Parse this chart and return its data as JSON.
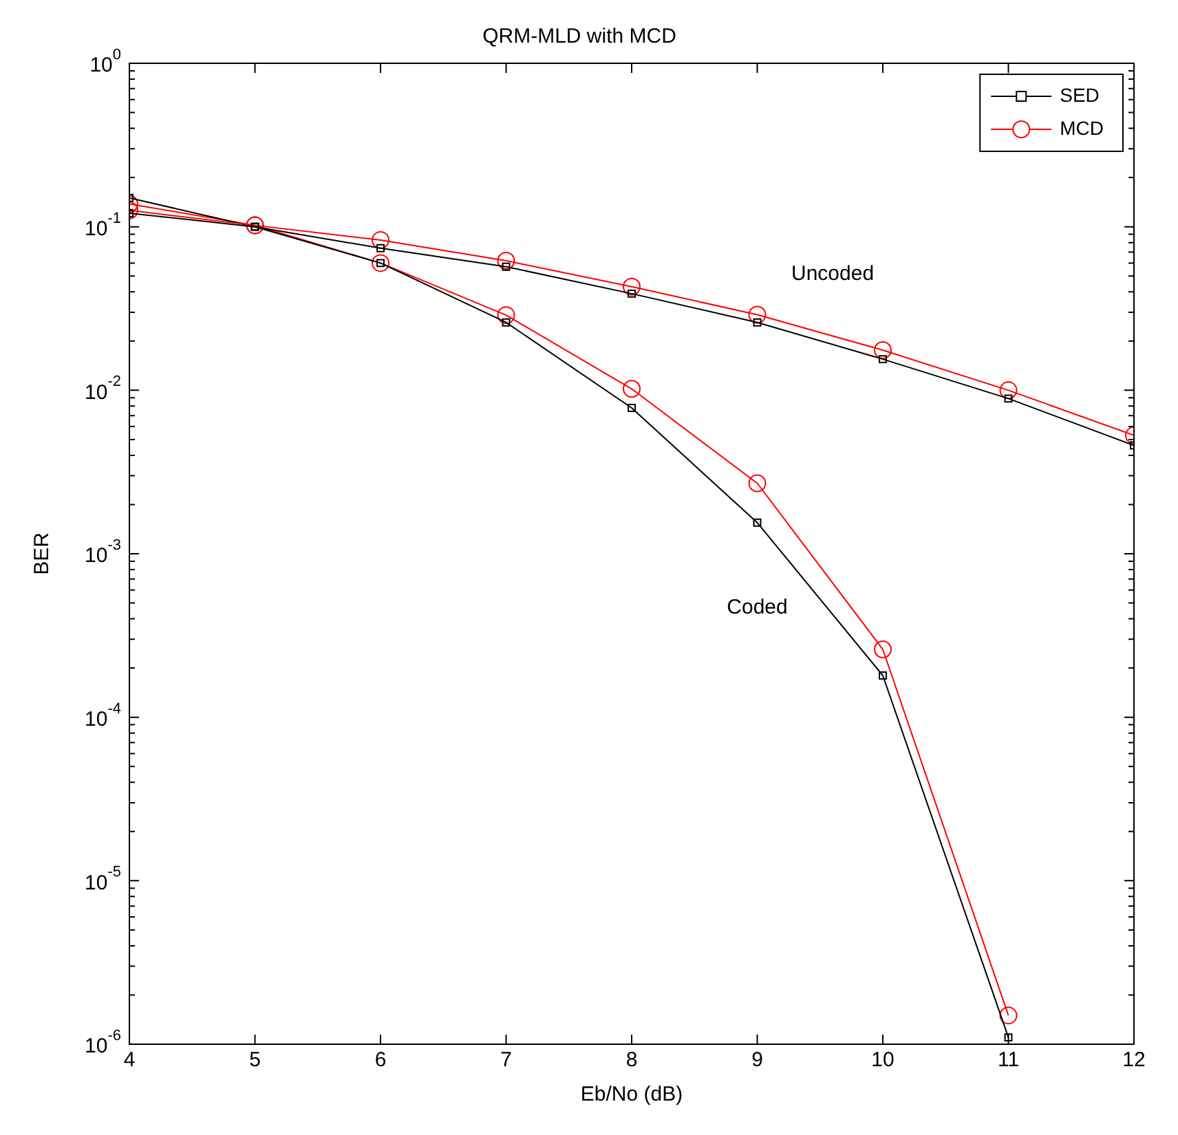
{
  "chart_data": {
    "type": "line",
    "title": "QRM-MLD with MCD",
    "xlabel": "Eb/No (dB)",
    "ylabel": "BER",
    "x": [
      4,
      5,
      6,
      7,
      8,
      9,
      10,
      11,
      12
    ],
    "xlim": [
      4,
      12
    ],
    "xticks": [
      4,
      5,
      6,
      7,
      8,
      9,
      10,
      11,
      12
    ],
    "ylim": [
      1e-06,
      1
    ],
    "yticks": [
      {
        "value": 1e-06,
        "label": "10$^{-6}$"
      },
      {
        "value": 1e-05,
        "label": "10$^{-5}$"
      },
      {
        "value": 0.0001,
        "label": "10$^{-4}$"
      },
      {
        "value": 0.001,
        "label": "10$^{-3}$"
      },
      {
        "value": 0.01,
        "label": "10$^{-2}$"
      },
      {
        "value": 0.1,
        "label": "10$^{-1}$"
      },
      {
        "value": 1,
        "label": "10$^{0}$"
      }
    ],
    "log": "y",
    "grid": false,
    "legend": "top right",
    "line_style": "solid",
    "series": [
      {
        "name": "SED",
        "color": "#000000",
        "marker": "square",
        "values": [
          0.121,
          0.1,
          0.074,
          0.057,
          0.039,
          0.026,
          0.0155,
          0.0089,
          0.0046
        ]
      },
      {
        "name": "MCD",
        "color": "#ff0000",
        "marker": "circle",
        "values": [
          0.126,
          0.102,
          0.083,
          0.062,
          0.043,
          0.029,
          0.0176,
          0.01,
          0.0053
        ]
      },
      {
        "color": "#000000",
        "marker": "square",
        "values": [
          0.15,
          0.1,
          0.06,
          0.026,
          0.0078,
          0.00155,
          0.00018,
          1.1e-06,
          null
        ]
      },
      {
        "color": "#ff0000",
        "marker": "circle",
        "values": [
          0.138,
          0.102,
          0.06,
          0.0288,
          0.0102,
          0.0027,
          0.00026,
          1.5e-06,
          null
        ]
      }
    ],
    "annotations": [
      "Uncoded",
      "Coded"
    ]
  }
}
